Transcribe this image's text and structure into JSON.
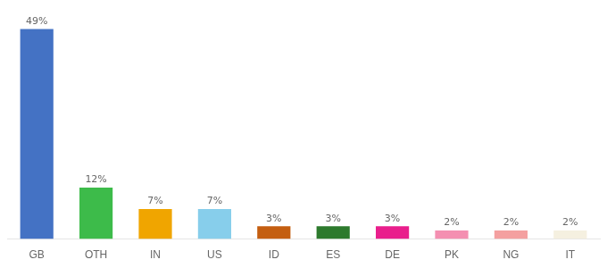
{
  "chart_data": {
    "type": "bar",
    "categories": [
      "GB",
      "OTH",
      "IN",
      "US",
      "ID",
      "ES",
      "DE",
      "PK",
      "NG",
      "IT"
    ],
    "values": [
      49,
      12,
      7,
      7,
      3,
      3,
      3,
      2,
      2,
      2
    ],
    "value_labels": [
      "49%",
      "12%",
      "7%",
      "7%",
      "3%",
      "3%",
      "3%",
      "2%",
      "2%",
      "2%"
    ],
    "data_labels": true,
    "colors": [
      "#4472c4",
      "#3dbb4a",
      "#f0a500",
      "#87ceeb",
      "#c45e10",
      "#2d7a2d",
      "#e91e8c",
      "#f48fb1",
      "#f4a0a0",
      "#f5f0e0"
    ],
    "ylim": [
      0,
      52
    ],
    "tick_labels": "x",
    "grid": false
  }
}
